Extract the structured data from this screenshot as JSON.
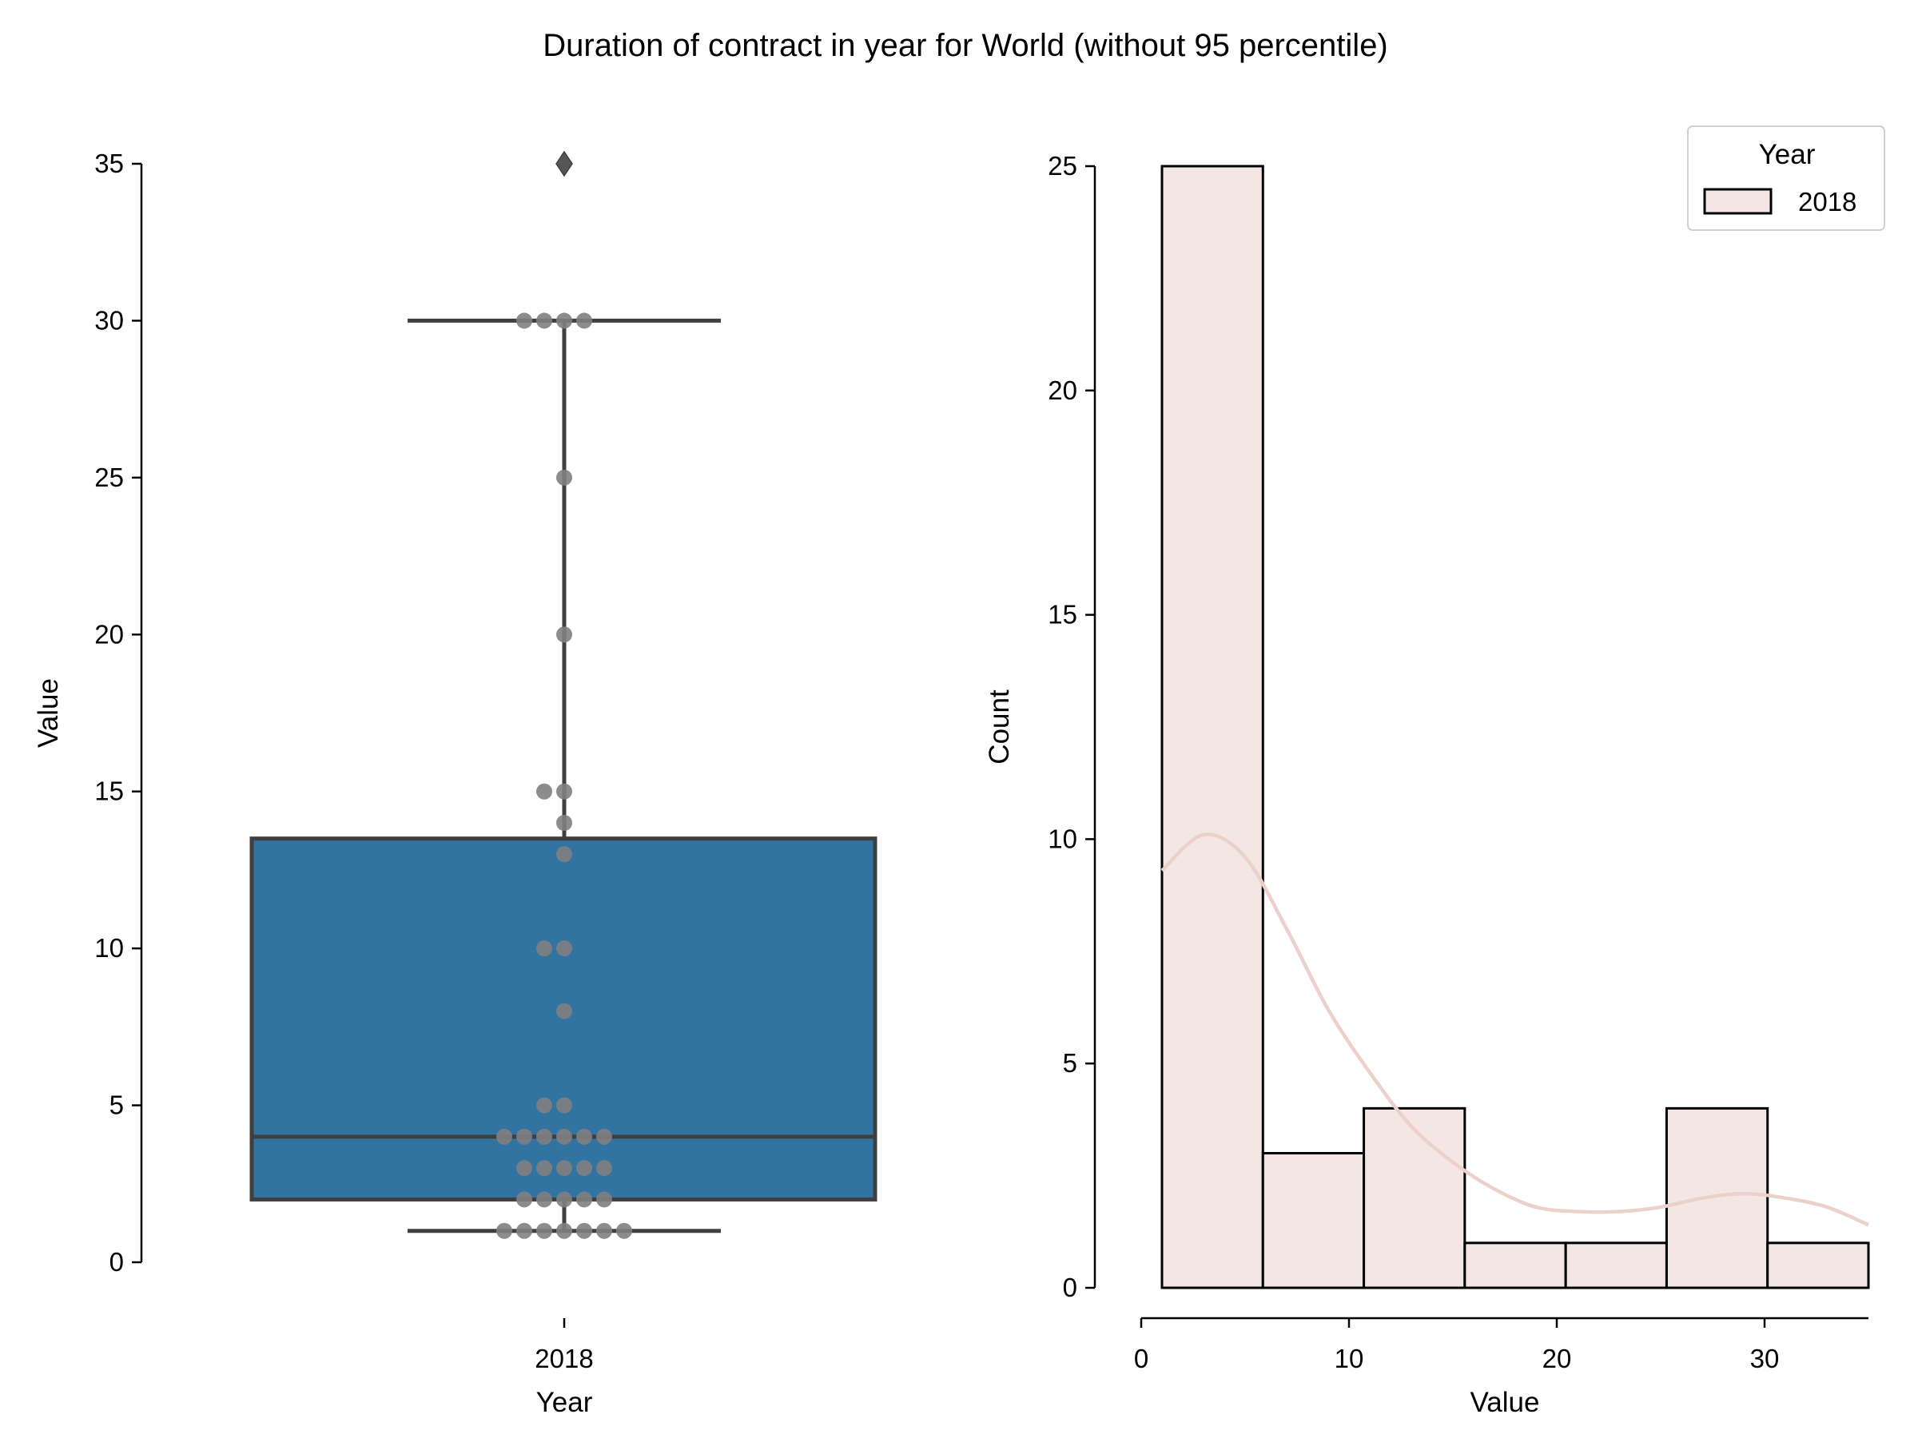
{
  "title": "Duration of contract in year for World (without 95 percentile)",
  "chart_data": [
    {
      "type": "box",
      "xlabel": "Year",
      "ylabel": "Value",
      "ylim": [
        0,
        35
      ],
      "yticks": [
        0,
        5,
        10,
        15,
        20,
        25,
        30,
        35
      ],
      "categories": [
        "2018"
      ],
      "box": {
        "q1": 2,
        "median": 4,
        "q3": 13.5,
        "whisker_low": 1,
        "whisker_high": 30,
        "fliers": [
          35
        ]
      },
      "swarm_points": [
        1,
        1,
        1,
        1,
        1,
        1,
        1,
        2,
        2,
        2,
        2,
        2,
        3,
        3,
        3,
        3,
        3,
        4,
        4,
        4,
        4,
        4,
        4,
        5,
        5,
        8,
        10,
        10,
        13,
        14,
        15,
        15,
        20,
        25,
        30,
        30,
        30,
        30
      ],
      "colors": {
        "box": "#3274a1",
        "box_edge": "#3f3f3f",
        "points": "#808080"
      }
    },
    {
      "type": "histogram",
      "xlabel": "Value",
      "ylabel": "Count",
      "xlim": [
        0,
        35
      ],
      "ylim": [
        0,
        25
      ],
      "xticks": [
        0,
        10,
        20,
        30
      ],
      "yticks": [
        0,
        5,
        10,
        15,
        20,
        25
      ],
      "bin_edges": [
        1,
        5.857,
        10.714,
        15.571,
        20.429,
        25.286,
        30.143,
        35
      ],
      "counts": [
        25,
        3,
        4,
        1,
        1,
        4,
        1
      ],
      "kde": {
        "x": [
          1,
          3,
          5,
          7,
          9,
          11,
          13,
          15,
          17,
          19,
          21,
          23,
          25,
          27,
          29,
          31,
          33,
          35
        ],
        "y": [
          9.3,
          10.1,
          9.6,
          8.0,
          6.2,
          4.8,
          3.6,
          2.8,
          2.2,
          1.8,
          1.7,
          1.7,
          1.8,
          2.0,
          2.1,
          2.0,
          1.8,
          1.4
        ]
      },
      "legend": {
        "title": "Year",
        "entries": [
          "2018"
        ],
        "placement": "top-right"
      },
      "colors": {
        "bar": "#f4e6e3",
        "bar_edge": "#000000",
        "kde": "#ecd1ca"
      }
    }
  ]
}
